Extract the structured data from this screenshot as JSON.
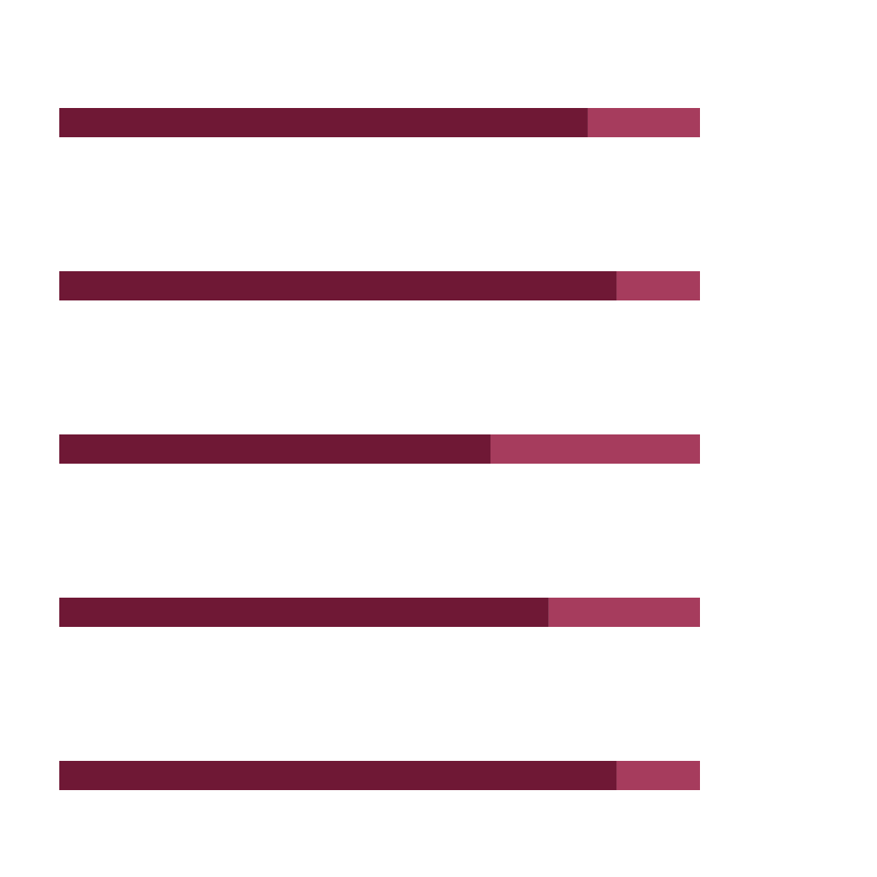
{
  "chart_data": {
    "type": "bar",
    "orientation": "horizontal",
    "stacked": true,
    "grid": false,
    "legend": "none",
    "xlim": [
      0,
      1
    ],
    "categories": [
      "",
      "",
      "",
      "",
      ""
    ],
    "series": [
      {
        "values": [
          0.825,
          0.87,
          0.673,
          0.764,
          0.87
        ]
      },
      {
        "values": [
          0.175,
          0.13,
          0.327,
          0.236,
          0.13
        ]
      }
    ]
  },
  "colors": {
    "filled": "#6f1835",
    "remainder": "#a63c5d",
    "background": "#ffffff"
  }
}
